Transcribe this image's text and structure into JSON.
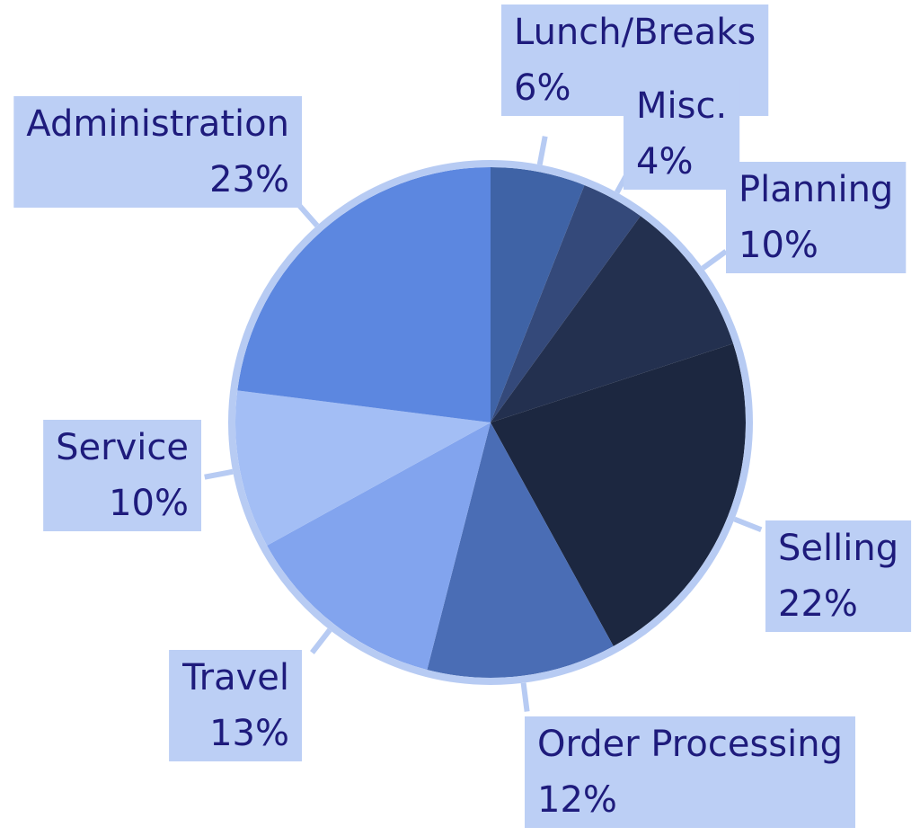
{
  "chart_data": {
    "type": "pie",
    "categories": [
      "Lunch/Breaks",
      "Misc.",
      "Planning",
      "Selling",
      "Order Processing",
      "Travel",
      "Service",
      "Administration"
    ],
    "values": [
      6,
      4,
      10,
      22,
      12,
      13,
      10,
      23
    ],
    "value_labels": [
      "6%",
      "4%",
      "10%",
      "22%",
      "12%",
      "13%",
      "10%",
      "23%"
    ],
    "colors": [
      "#3f63a6",
      "#34497a",
      "#23304f",
      "#1c2740",
      "#4a6db5",
      "#82a4ee",
      "#a3bef5",
      "#5c87e0"
    ]
  }
}
